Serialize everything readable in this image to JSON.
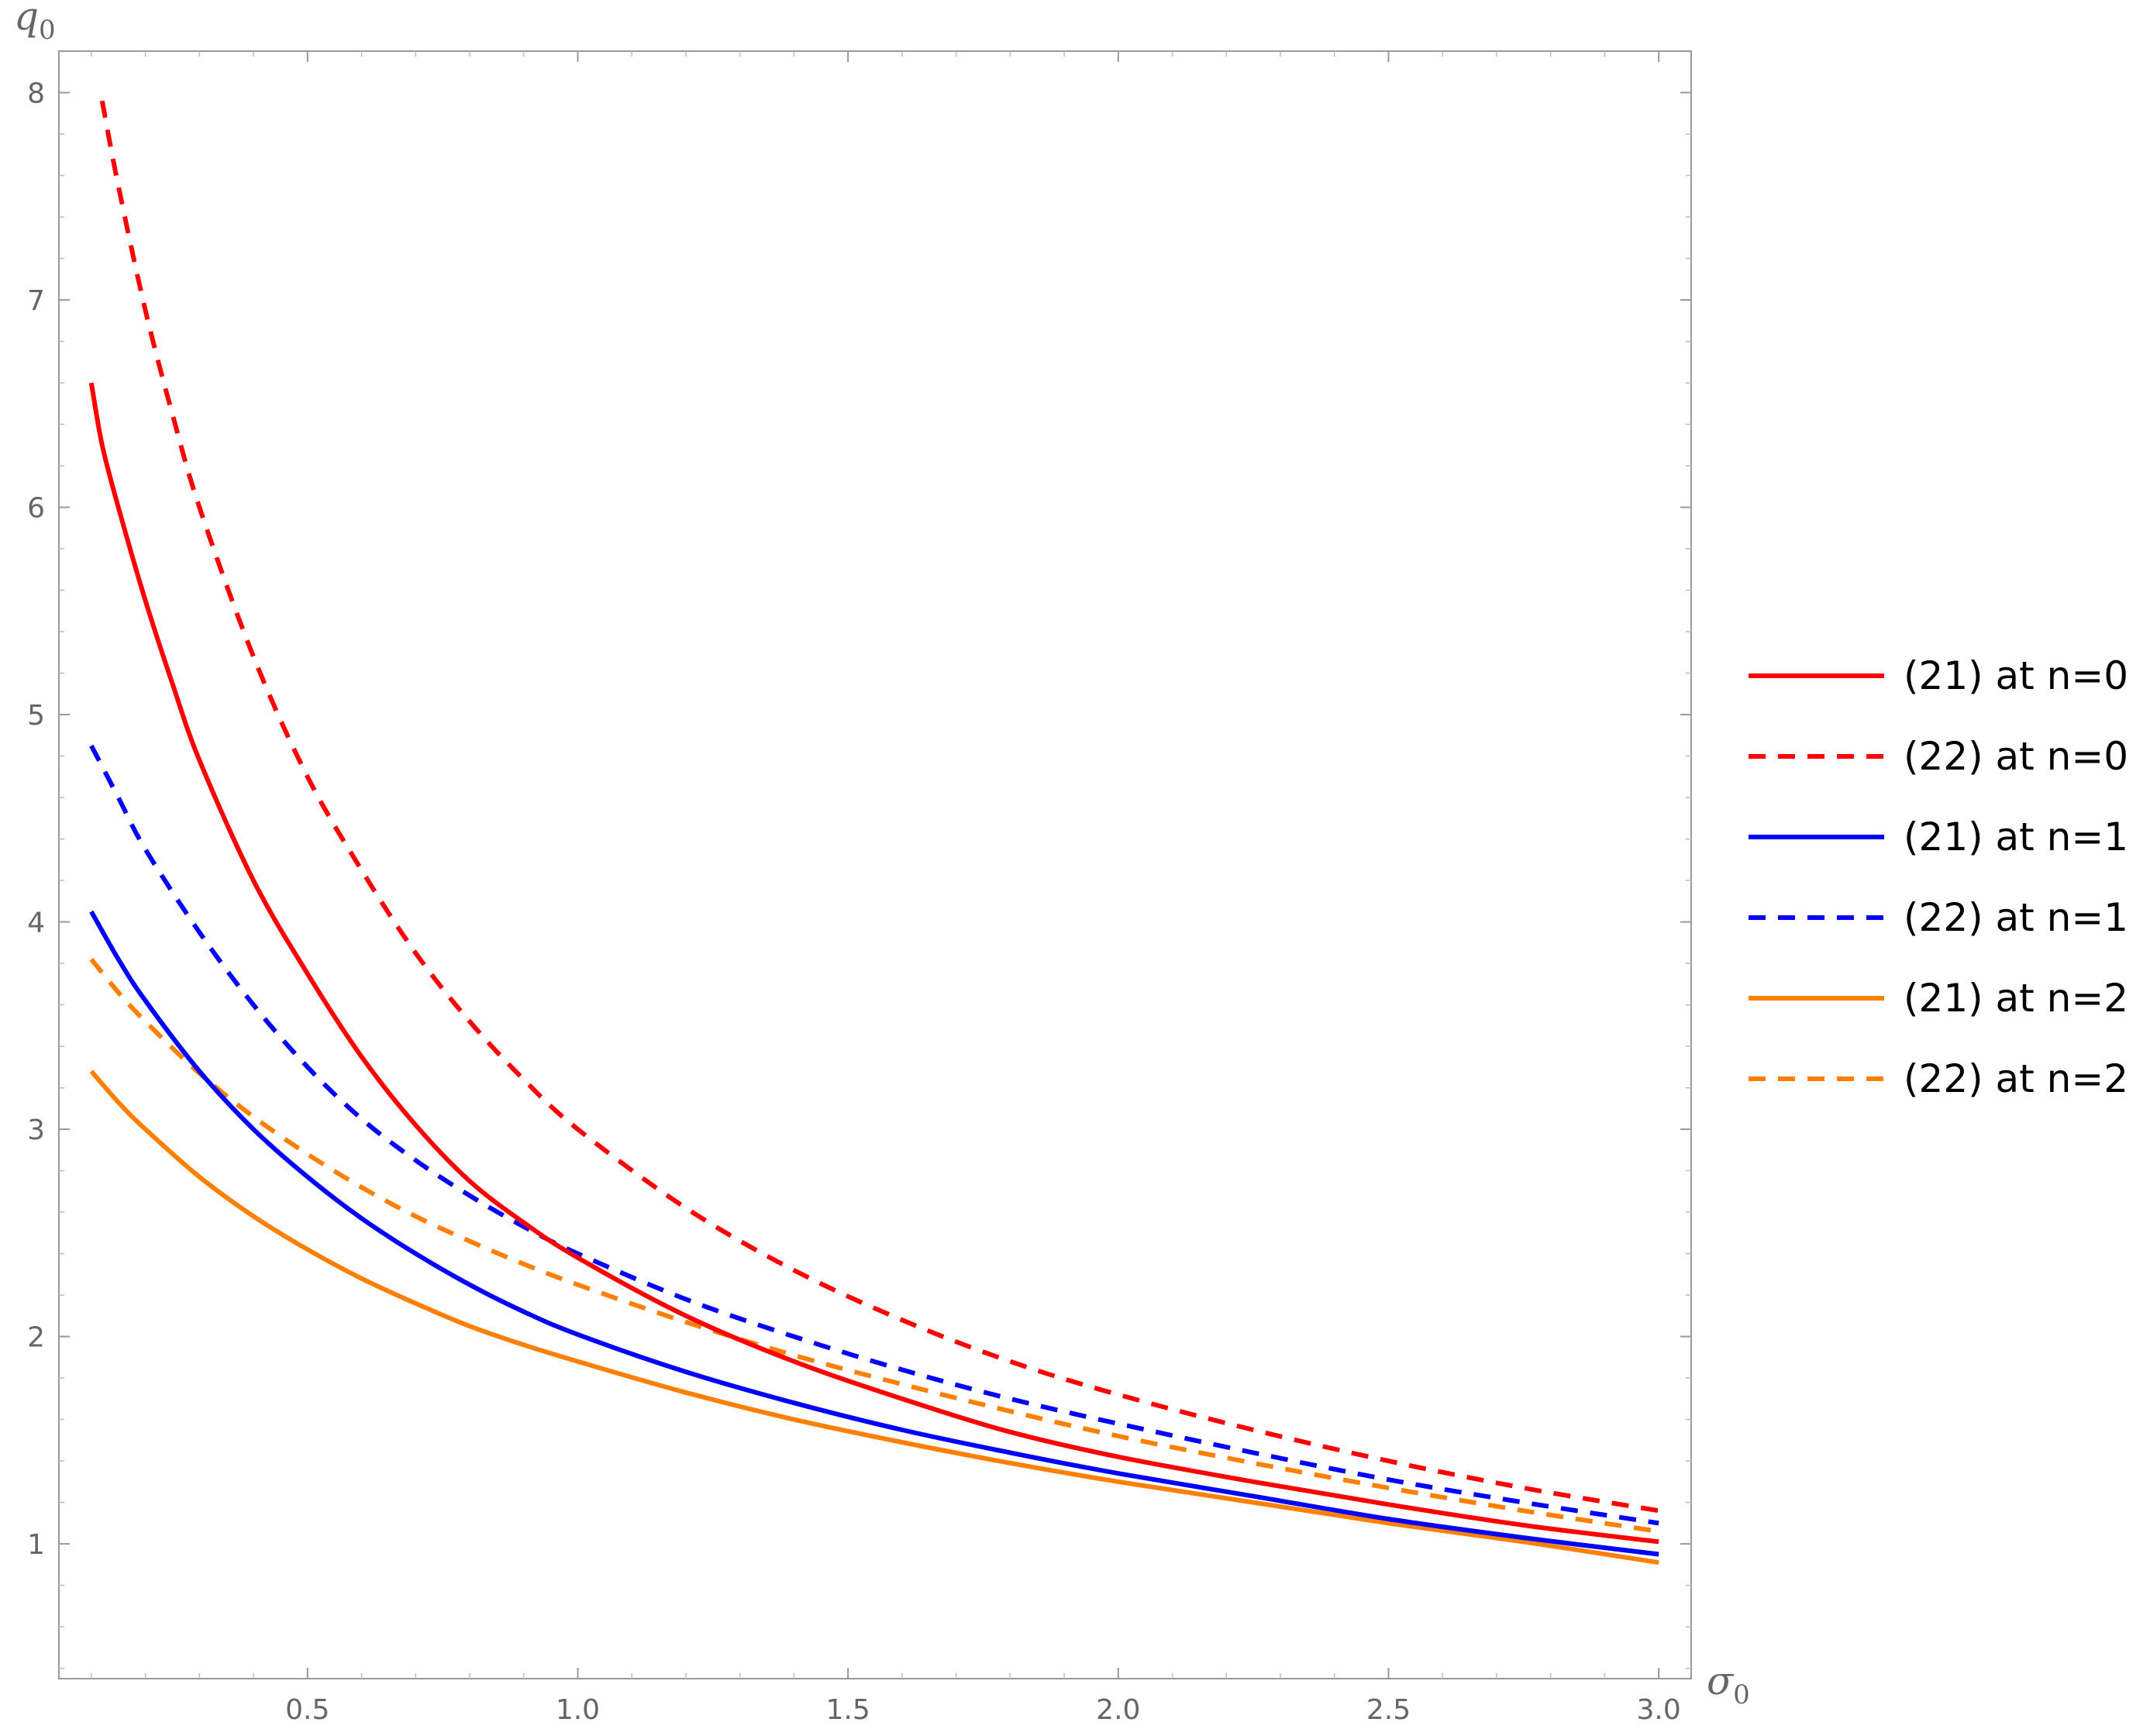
{
  "chart_data": {
    "type": "line",
    "xlabel": "σ",
    "xlabel_sub": "0",
    "ylabel": "q",
    "ylabel_sub": "0",
    "xlim": [
      0.04,
      3.06
    ],
    "ylim": [
      0.35,
      8.2
    ],
    "xticks": [
      0.5,
      1.0,
      1.5,
      2.0,
      2.5,
      3.0
    ],
    "xtick_labels": [
      "0.5",
      "1.0",
      "1.5",
      "2.0",
      "2.5",
      "3.0"
    ],
    "yticks": [
      1,
      2,
      3,
      4,
      5,
      6,
      7,
      8
    ],
    "ytick_labels": [
      "1",
      "2",
      "3",
      "4",
      "5",
      "6",
      "7",
      "8"
    ],
    "grid": false,
    "legend_position": "right",
    "series": [
      {
        "name": "(21) at n=0",
        "color": "#ff0000",
        "dash": "solid",
        "x": [
          0.1,
          0.12,
          0.15,
          0.2,
          0.25,
          0.3,
          0.4,
          0.5,
          0.6,
          0.7,
          0.8,
          0.9,
          1.0,
          1.2,
          1.4,
          1.6,
          1.8,
          2.0,
          2.25,
          2.5,
          2.75,
          3.0
        ],
        "y": [
          6.6,
          6.3,
          6.0,
          5.55,
          5.15,
          4.78,
          4.2,
          3.75,
          3.35,
          3.02,
          2.75,
          2.55,
          2.38,
          2.1,
          1.88,
          1.7,
          1.54,
          1.42,
          1.3,
          1.19,
          1.09,
          1.01
        ]
      },
      {
        "name": "(22) at n=0",
        "color": "#ff0000",
        "dash": "dashed",
        "x": [
          0.12,
          0.15,
          0.2,
          0.25,
          0.3,
          0.4,
          0.5,
          0.6,
          0.7,
          0.8,
          0.9,
          1.0,
          1.2,
          1.4,
          1.6,
          1.8,
          2.0,
          2.25,
          2.5,
          2.75,
          3.0
        ],
        "y": [
          7.96,
          7.55,
          6.95,
          6.45,
          6.0,
          5.28,
          4.7,
          4.25,
          3.85,
          3.52,
          3.24,
          3.0,
          2.62,
          2.32,
          2.08,
          1.88,
          1.72,
          1.55,
          1.4,
          1.27,
          1.16
        ]
      },
      {
        "name": "(21) at n=1",
        "color": "#0000ff",
        "dash": "solid",
        "x": [
          0.1,
          0.15,
          0.2,
          0.3,
          0.4,
          0.5,
          0.6,
          0.7,
          0.8,
          0.9,
          1.0,
          1.2,
          1.4,
          1.6,
          1.8,
          2.0,
          2.25,
          2.5,
          2.75,
          3.0
        ],
        "y": [
          4.05,
          3.82,
          3.62,
          3.28,
          3.0,
          2.77,
          2.57,
          2.4,
          2.25,
          2.12,
          2.01,
          1.83,
          1.68,
          1.55,
          1.44,
          1.34,
          1.23,
          1.12,
          1.03,
          0.95
        ]
      },
      {
        "name": "(22) at n=1",
        "color": "#0000ff",
        "dash": "dashed",
        "x": [
          0.1,
          0.15,
          0.2,
          0.3,
          0.4,
          0.5,
          0.6,
          0.7,
          0.8,
          0.9,
          1.0,
          1.2,
          1.4,
          1.6,
          1.8,
          2.0,
          2.25,
          2.5,
          2.75,
          3.0
        ],
        "y": [
          4.85,
          4.6,
          4.35,
          3.95,
          3.6,
          3.3,
          3.05,
          2.85,
          2.68,
          2.53,
          2.4,
          2.18,
          2.0,
          1.84,
          1.7,
          1.58,
          1.44,
          1.31,
          1.2,
          1.1
        ]
      },
      {
        "name": "(21) at n=2",
        "color": "#ff8000",
        "dash": "solid",
        "x": [
          0.1,
          0.15,
          0.2,
          0.3,
          0.4,
          0.5,
          0.6,
          0.7,
          0.8,
          0.9,
          1.0,
          1.2,
          1.4,
          1.6,
          1.8,
          2.0,
          2.25,
          2.5,
          2.75,
          3.0
        ],
        "y": [
          3.28,
          3.13,
          3.0,
          2.77,
          2.58,
          2.42,
          2.28,
          2.16,
          2.05,
          1.96,
          1.88,
          1.73,
          1.6,
          1.49,
          1.39,
          1.3,
          1.2,
          1.1,
          1.01,
          0.91
        ]
      },
      {
        "name": "(22) at n=2",
        "color": "#ff8000",
        "dash": "dashed",
        "x": [
          0.1,
          0.15,
          0.2,
          0.3,
          0.4,
          0.5,
          0.6,
          0.7,
          0.8,
          0.9,
          1.0,
          1.2,
          1.4,
          1.6,
          1.8,
          2.0,
          2.25,
          2.5,
          2.75,
          3.0
        ],
        "y": [
          3.82,
          3.66,
          3.52,
          3.27,
          3.06,
          2.88,
          2.72,
          2.58,
          2.46,
          2.35,
          2.25,
          2.07,
          1.91,
          1.77,
          1.64,
          1.52,
          1.39,
          1.27,
          1.16,
          1.06
        ]
      }
    ]
  }
}
